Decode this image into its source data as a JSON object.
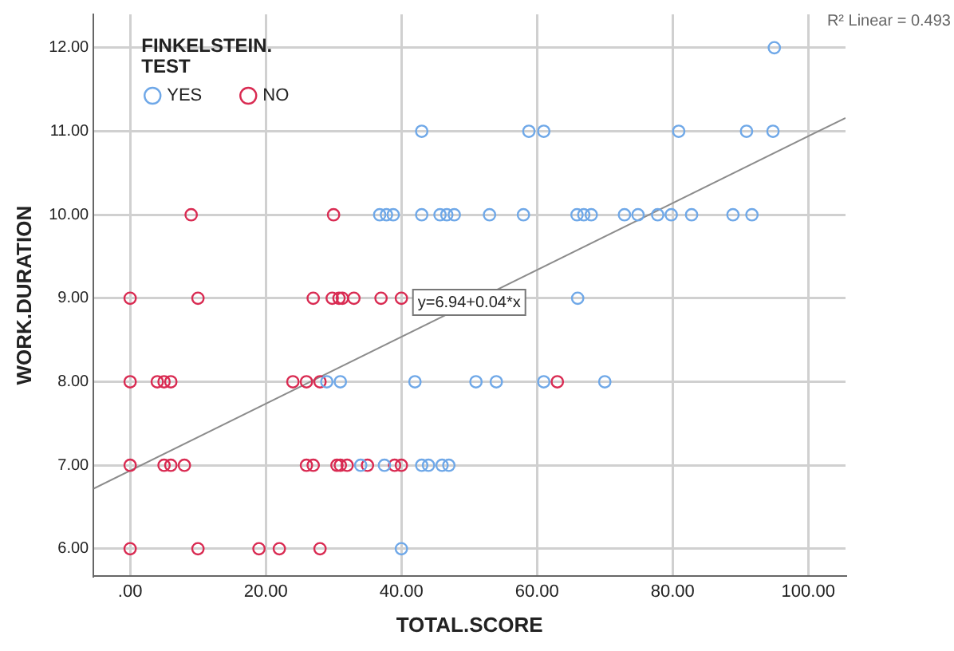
{
  "chart_data": {
    "type": "scatter",
    "xlabel": "TOTAL.SCORE",
    "ylabel": "WORK.DURATION",
    "legend_title": "FINKELSTEIN.\nTEST",
    "legend": "top left",
    "grid": true,
    "xlim": [
      -5.4,
      105.5
    ],
    "ylim": [
      5.67,
      12.4
    ],
    "xticks": [
      {
        "value": 0,
        "label": ".00"
      },
      {
        "value": 20,
        "label": "20.00"
      },
      {
        "value": 40,
        "label": "40.00"
      },
      {
        "value": 60,
        "label": "60.00"
      },
      {
        "value": 80,
        "label": "80.00"
      },
      {
        "value": 100,
        "label": "100.00"
      }
    ],
    "yticks": [
      {
        "value": 6,
        "label": "6.00"
      },
      {
        "value": 7,
        "label": "7.00"
      },
      {
        "value": 8,
        "label": "8.00"
      },
      {
        "value": 9,
        "label": "9.00"
      },
      {
        "value": 10,
        "label": "10.00"
      },
      {
        "value": 11,
        "label": "11.00"
      },
      {
        "value": 12,
        "label": "12.00"
      }
    ],
    "annotations": [
      "R² Linear = 0.493",
      {
        "text": "y=6.94+0.04*x",
        "x": 50,
        "y": 8.95
      }
    ],
    "series": [
      {
        "name": "YES",
        "color": "#6fa8e8",
        "marker": "circle",
        "x": [
          95,
          43,
          58.8,
          61,
          80.9,
          90.9,
          94.8,
          36.8,
          37.8,
          38.8,
          43,
          45.7,
          46.7,
          47.8,
          53,
          58,
          65.9,
          66.9,
          68,
          72.9,
          74.9,
          77.8,
          79.8,
          82.8,
          88.9,
          91.7,
          66,
          29,
          31,
          42,
          51,
          54,
          61,
          70,
          34,
          37.5,
          43,
          44,
          46,
          47,
          40
        ],
        "values": [
          12,
          11,
          11,
          11,
          11,
          11,
          11,
          10,
          10,
          10,
          10,
          10,
          10,
          10,
          10,
          10,
          10,
          10,
          10,
          10,
          10,
          10,
          10,
          10,
          10,
          10,
          9,
          8,
          8,
          8,
          8,
          8,
          8,
          8,
          7,
          7,
          7,
          7,
          7,
          7,
          6
        ]
      },
      {
        "name": "NO",
        "color": "#d92b52",
        "marker": "circle",
        "x": [
          9,
          30,
          0,
          10,
          27,
          29.8,
          30.8,
          31.3,
          33,
          37,
          40,
          0,
          4,
          5,
          6,
          24,
          26,
          28,
          63,
          0,
          5,
          6,
          8,
          26,
          27,
          30.5,
          31,
          32,
          35,
          39,
          40,
          0,
          10,
          19,
          22,
          28
        ],
        "values": [
          10,
          10,
          9,
          9,
          9,
          9,
          9,
          9,
          9,
          9,
          9,
          8,
          8,
          8,
          8,
          8,
          8,
          8,
          8,
          7,
          7,
          7,
          7,
          7,
          7,
          7,
          7,
          7,
          7,
          7,
          7,
          6,
          6,
          6,
          6,
          6
        ]
      },
      {
        "type": "line",
        "color": "#8c8c8c",
        "marker": "none",
        "x": [
          -5.4,
          105.5
        ],
        "values": [
          6.72,
          11.16
        ]
      }
    ]
  }
}
